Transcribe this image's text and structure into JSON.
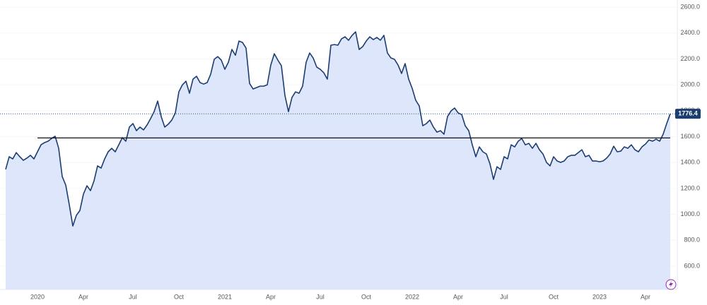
{
  "chart_data": {
    "type": "area",
    "categories": [
      null,
      null,
      null,
      null,
      null,
      null,
      null,
      null,
      null,
      "2020",
      null,
      null,
      null,
      null,
      null,
      null,
      null,
      null,
      null,
      null,
      null,
      null,
      "Apr",
      null,
      null,
      null,
      null,
      null,
      null,
      null,
      null,
      null,
      null,
      null,
      null,
      null,
      "Jul",
      null,
      null,
      null,
      null,
      null,
      null,
      null,
      null,
      null,
      null,
      null,
      null,
      "Oct",
      null,
      null,
      null,
      null,
      null,
      null,
      null,
      null,
      null,
      null,
      null,
      null,
      "2021",
      null,
      null,
      null,
      null,
      null,
      null,
      null,
      null,
      null,
      null,
      null,
      null,
      "Apr",
      null,
      null,
      null,
      null,
      null,
      null,
      null,
      null,
      null,
      null,
      null,
      null,
      null,
      "Jul",
      null,
      null,
      null,
      null,
      null,
      null,
      null,
      null,
      null,
      null,
      null,
      null,
      "Oct",
      null,
      null,
      null,
      null,
      null,
      null,
      null,
      null,
      null,
      null,
      null,
      null,
      "2022",
      null,
      null,
      null,
      null,
      null,
      null,
      null,
      null,
      null,
      null,
      null,
      null,
      "Apr",
      null,
      null,
      null,
      null,
      null,
      null,
      null,
      null,
      null,
      null,
      null,
      null,
      "Jul",
      null,
      null,
      null,
      null,
      null,
      null,
      null,
      null,
      null,
      null,
      null,
      null,
      null,
      "Oct",
      null,
      null,
      null,
      null,
      null,
      null,
      null,
      null,
      null,
      null,
      null,
      null,
      "2023",
      null,
      null,
      null,
      null,
      null,
      null,
      null,
      null,
      null,
      null,
      null,
      null,
      "Apr",
      null,
      null,
      null,
      null,
      null,
      null,
      null
    ],
    "values": [
      1347,
      1445,
      1428,
      1477,
      1445,
      1417,
      1434,
      1456,
      1428,
      1483,
      1537,
      1554,
      1565,
      1586,
      1603,
      1510,
      1292,
      1226,
      1074,
      910,
      992,
      1030,
      1156,
      1221,
      1183,
      1259,
      1374,
      1357,
      1428,
      1483,
      1510,
      1483,
      1537,
      1592,
      1565,
      1674,
      1701,
      1646,
      1674,
      1652,
      1690,
      1739,
      1793,
      1875,
      1755,
      1674,
      1696,
      1728,
      1783,
      1946,
      2000,
      2028,
      1935,
      2044,
      2066,
      2017,
      2006,
      2017,
      2082,
      2197,
      2218,
      2191,
      2120,
      2174,
      2273,
      2229,
      2338,
      2327,
      2284,
      2011,
      1968,
      1979,
      1990,
      1990,
      2000,
      2153,
      2240,
      2191,
      2148,
      1919,
      1793,
      1903,
      1946,
      1935,
      1990,
      2174,
      2246,
      2207,
      2137,
      2120,
      2093,
      2044,
      2306,
      2311,
      2306,
      2355,
      2371,
      2344,
      2382,
      2409,
      2273,
      2295,
      2338,
      2371,
      2349,
      2366,
      2344,
      2382,
      2246,
      2207,
      2197,
      2153,
      2088,
      2164,
      2044,
      1973,
      1881,
      1837,
      1684,
      1701,
      1728,
      1674,
      1635,
      1646,
      1619,
      1755,
      1799,
      1821,
      1783,
      1771,
      1684,
      1646,
      1537,
      1445,
      1521,
      1483,
      1466,
      1390,
      1270,
      1368,
      1347,
      1445,
      1428,
      1537,
      1521,
      1565,
      1586,
      1537,
      1548,
      1510,
      1548,
      1499,
      1466,
      1401,
      1374,
      1445,
      1412,
      1401,
      1412,
      1445,
      1456,
      1456,
      1477,
      1499,
      1445,
      1456,
      1412,
      1412,
      1406,
      1412,
      1434,
      1466,
      1526,
      1483,
      1488,
      1521,
      1510,
      1537,
      1499,
      1483,
      1521,
      1543,
      1575,
      1565,
      1581,
      1565,
      1619,
      1701,
      1776.4
    ],
    "color": "#1c3d70",
    "fill_color": "#d3defb",
    "reference_line": 1590,
    "ylim": [
      420,
      2655
    ],
    "yticks": [
      {
        "value": 600,
        "label": "600.0"
      },
      {
        "value": 800,
        "label": "800.0"
      },
      {
        "value": 1000,
        "label": "1000.0"
      },
      {
        "value": 1200,
        "label": "1200.0"
      },
      {
        "value": 1400,
        "label": "1400.0"
      },
      {
        "value": 1600,
        "label": "1600.0"
      },
      {
        "value": 1800,
        "label": "1800.0"
      },
      {
        "value": 2000,
        "label": "2000.0"
      },
      {
        "value": 2200,
        "label": "2200.0"
      },
      {
        "value": 2400,
        "label": "2400.0"
      },
      {
        "value": 2600,
        "label": "2600.0"
      }
    ]
  }
}
